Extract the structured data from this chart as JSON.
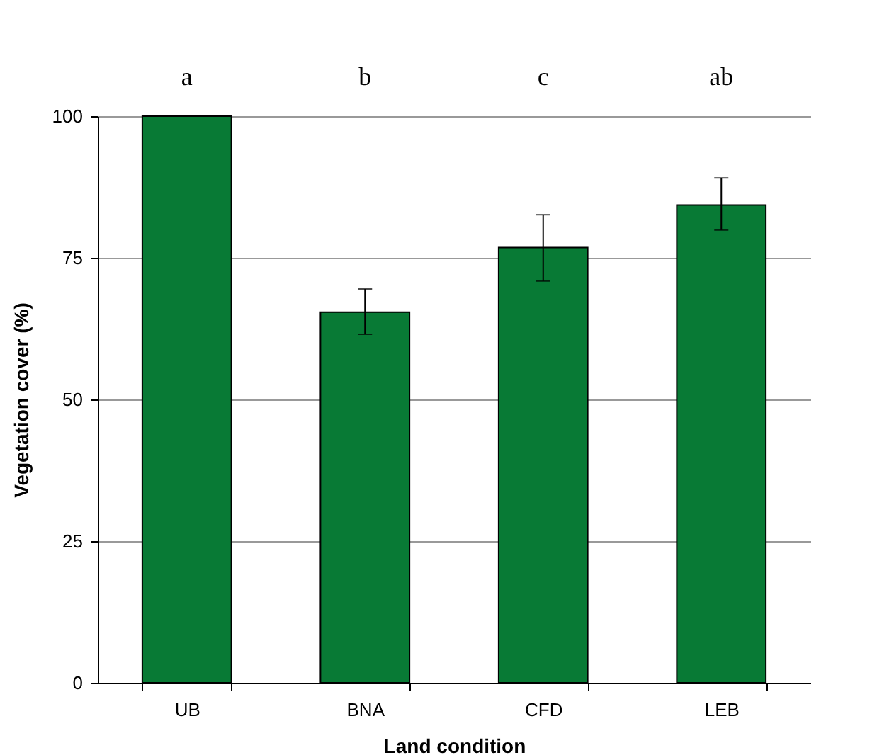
{
  "chart_data": {
    "type": "bar",
    "xlabel": "Land condition",
    "ylabel": "Vegetation cover (%)",
    "categories": [
      "UB",
      "BNA",
      "CFD",
      "LEB"
    ],
    "values": [
      100,
      65.4,
      76.8,
      84.3
    ],
    "errors": [
      null,
      [
        61.5,
        69.5
      ],
      [
        70.9,
        82.6
      ],
      [
        79.9,
        89.1
      ]
    ],
    "color": "#087a35",
    "ylim": [
      0,
      100
    ],
    "yticks": [
      0,
      25,
      50,
      75,
      100
    ],
    "grid": "y",
    "annotations": [
      "a",
      "b",
      "c",
      "ab"
    ]
  }
}
